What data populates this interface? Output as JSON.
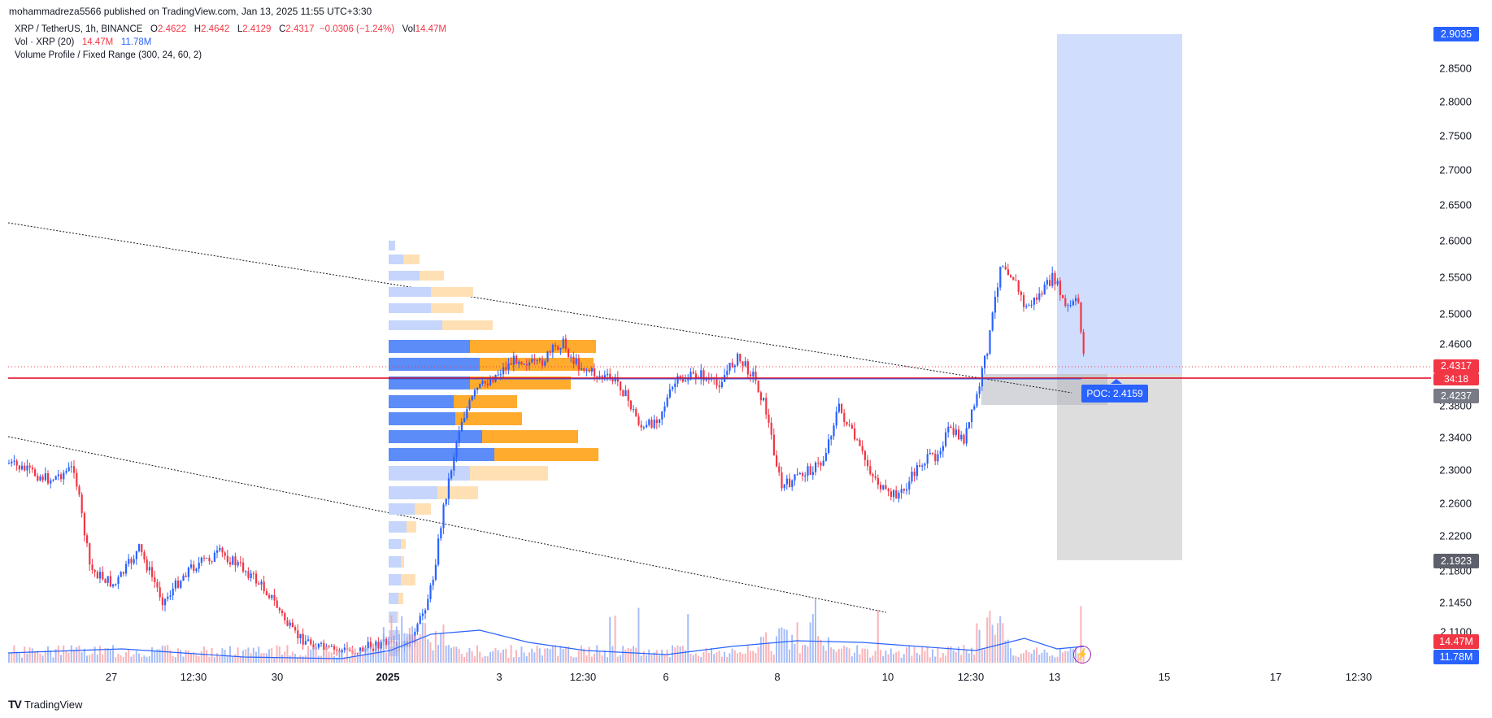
{
  "header": {
    "published_by": "mohammadreza5566 published on TradingView.com, Jan 13, 2025 11:55 UTC+3:30"
  },
  "legend": {
    "symbol": "XRP / TetherUS, 1h, BINANCE",
    "o_label": "O",
    "o_value": "2.4622",
    "h_label": "H",
    "h_value": "2.4642",
    "l_label": "L",
    "l_value": "2.4129",
    "c_label": "C",
    "c_value": "2.4317",
    "change": "−0.0306 (−1.24%)",
    "vol_label": "Vol",
    "vol_value": "14.47M",
    "vol_indicator": "Vol · XRP (20)",
    "vol_ind_value1": "14.47M",
    "vol_ind_value2": "11.78M",
    "volume_profile": "Volume Profile / Fixed Range (300, 24, 60, 2)"
  },
  "price_axis": {
    "ticks": [
      "2.8500",
      "2.8000",
      "2.7500",
      "2.7000",
      "2.6500",
      "2.6000",
      "2.5500",
      "2.5000",
      "2.4600",
      "2.3800",
      "2.3400",
      "2.3000",
      "2.2600",
      "2.2200",
      "2.1800",
      "2.1450",
      "2.1100"
    ],
    "labels": {
      "target": "2.9035",
      "last_price": "2.4317",
      "countdown": "34:18",
      "entry": "2.4237",
      "stop": "2.1923",
      "vol_red": "14.47M",
      "vol_blue": "11.78M"
    }
  },
  "time_axis": {
    "labels": [
      "27",
      "12:30",
      "30",
      "2025",
      "3",
      "12:30",
      "6",
      "8",
      "10",
      "12:30",
      "13",
      "15",
      "17",
      "12:30"
    ]
  },
  "poc": {
    "label": "POC: 2.4159"
  },
  "colors": {
    "up": "#2962ff",
    "down": "#f23645",
    "profile_up": "#5b8cf7",
    "profile_down": "#ffab2e",
    "target_zone": "#c8d7fb",
    "stop_zone": "#d9d9d9",
    "last_price": "#f23645",
    "entry_label": "#787b86",
    "stop_label": "#5d606b",
    "target_label": "#2962ff"
  },
  "footer": {
    "brand": "TradingView"
  }
}
